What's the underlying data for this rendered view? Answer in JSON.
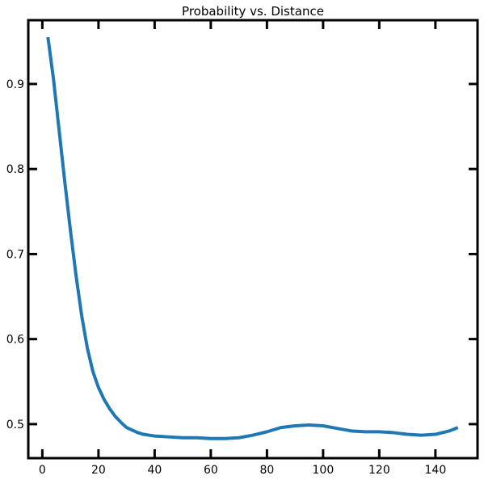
{
  "chart_data": {
    "type": "line",
    "title": "Probability vs. Distance",
    "xlabel": "",
    "ylabel": "",
    "xlim": [
      -5,
      155
    ],
    "ylim": [
      0.46,
      0.975
    ],
    "xticks": [
      0,
      20,
      40,
      60,
      80,
      100,
      120,
      140
    ],
    "yticks": [
      0.5,
      0.6,
      0.7,
      0.8,
      0.9
    ],
    "ytick_labels": [
      "0.5",
      "0.6",
      "0.7",
      "0.8",
      "0.9"
    ],
    "grid": false,
    "line_color": "#1f77b4",
    "series": [
      {
        "x": [
          2,
          4,
          6,
          8,
          10,
          12,
          14,
          16,
          18,
          20,
          22,
          24,
          26,
          28,
          30,
          32,
          34,
          36,
          38,
          40,
          45,
          50,
          55,
          60,
          65,
          70,
          75,
          80,
          85,
          90,
          95,
          100,
          105,
          110,
          115,
          120,
          125,
          130,
          135,
          140,
          145,
          148
        ],
        "y": [
          0.955,
          0.905,
          0.845,
          0.785,
          0.728,
          0.675,
          0.628,
          0.59,
          0.562,
          0.543,
          0.529,
          0.518,
          0.509,
          0.502,
          0.496,
          0.493,
          0.49,
          0.488,
          0.487,
          0.486,
          0.485,
          0.484,
          0.484,
          0.483,
          0.483,
          0.484,
          0.487,
          0.491,
          0.496,
          0.498,
          0.499,
          0.498,
          0.495,
          0.492,
          0.491,
          0.491,
          0.49,
          0.488,
          0.487,
          0.488,
          0.492,
          0.496
        ]
      }
    ]
  }
}
